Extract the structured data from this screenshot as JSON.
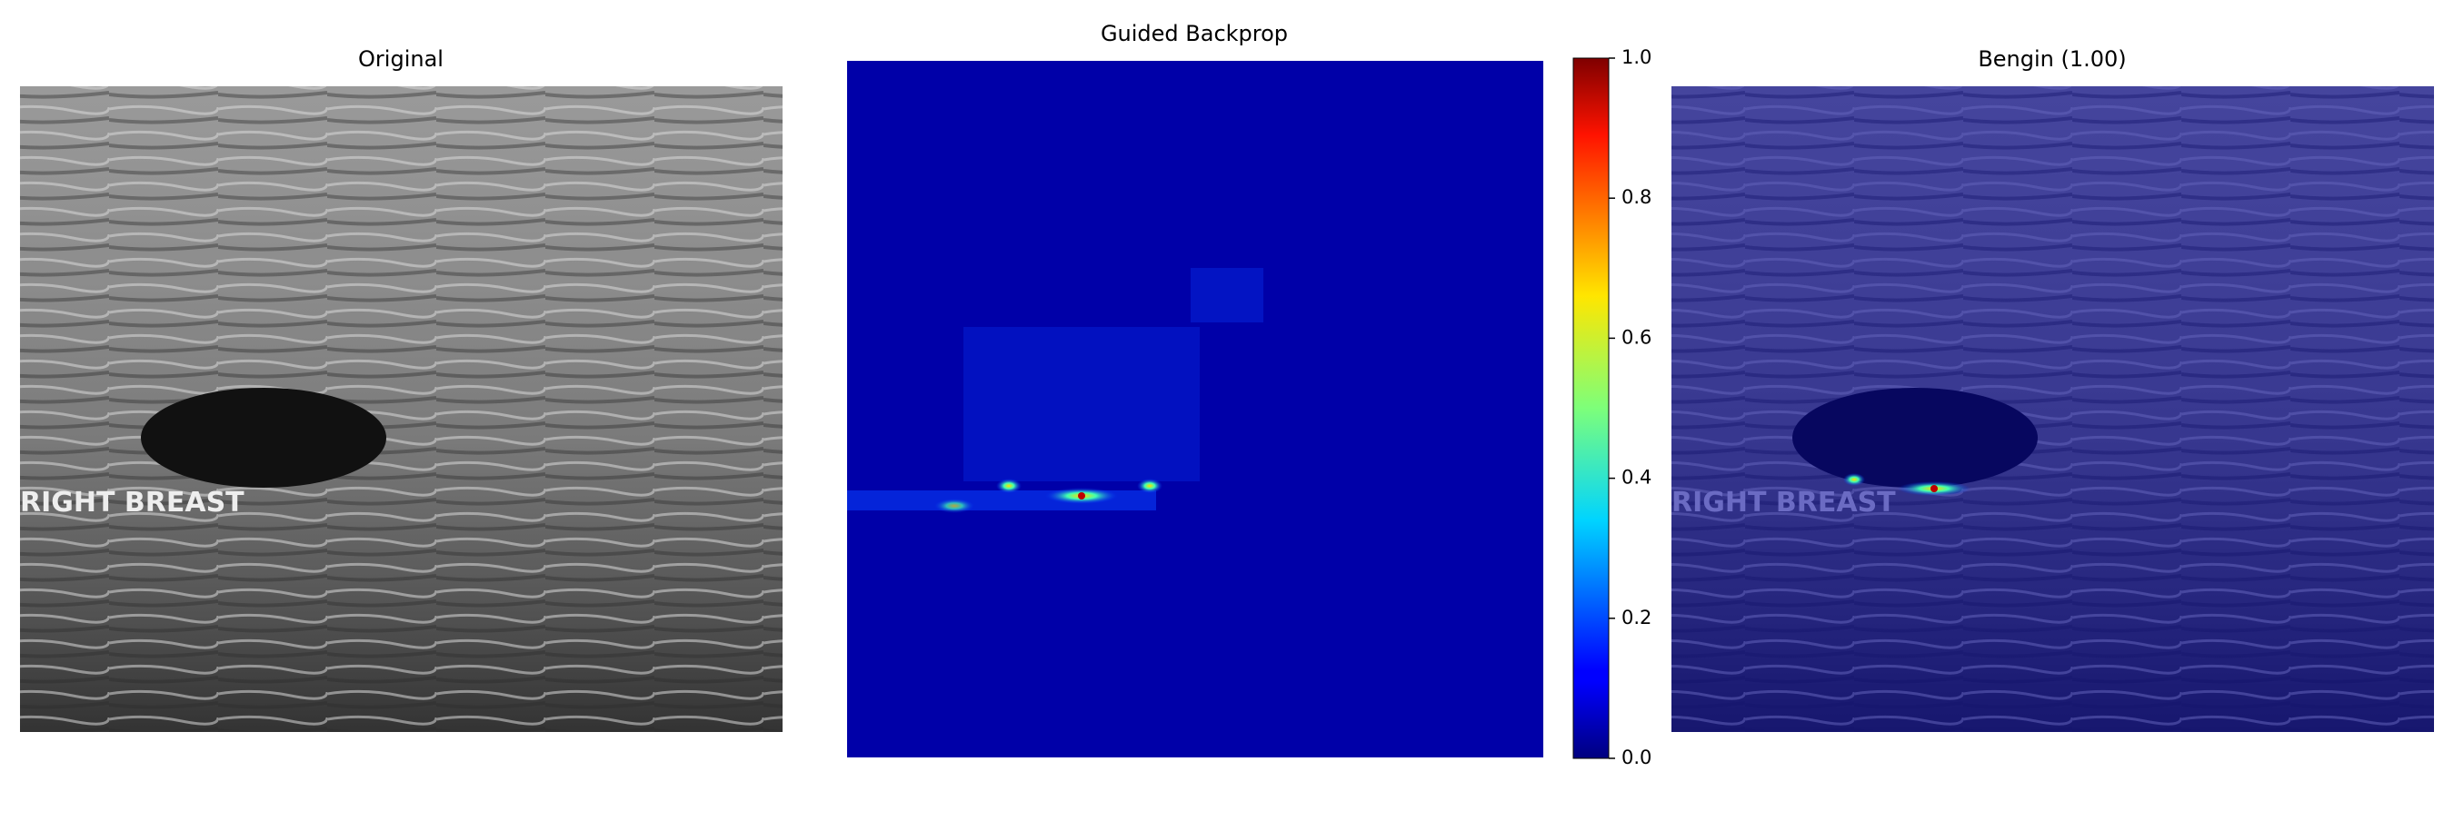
{
  "chart_data": {
    "type": "image-panels",
    "panels": [
      {
        "title": "Original"
      },
      {
        "title": "Guided Backprop"
      },
      {
        "title": "Bengin (1.00)"
      }
    ],
    "image_text": "RIGHT BREAST",
    "colorbar": {
      "colormap": "jet",
      "ylim": [
        0,
        1
      ],
      "yticks": [
        {
          "value": 0,
          "label": "0.0"
        },
        0.2,
        0.4,
        0.6,
        0.8,
        {
          "value": 1,
          "label": "1.0"
        }
      ]
    }
  }
}
